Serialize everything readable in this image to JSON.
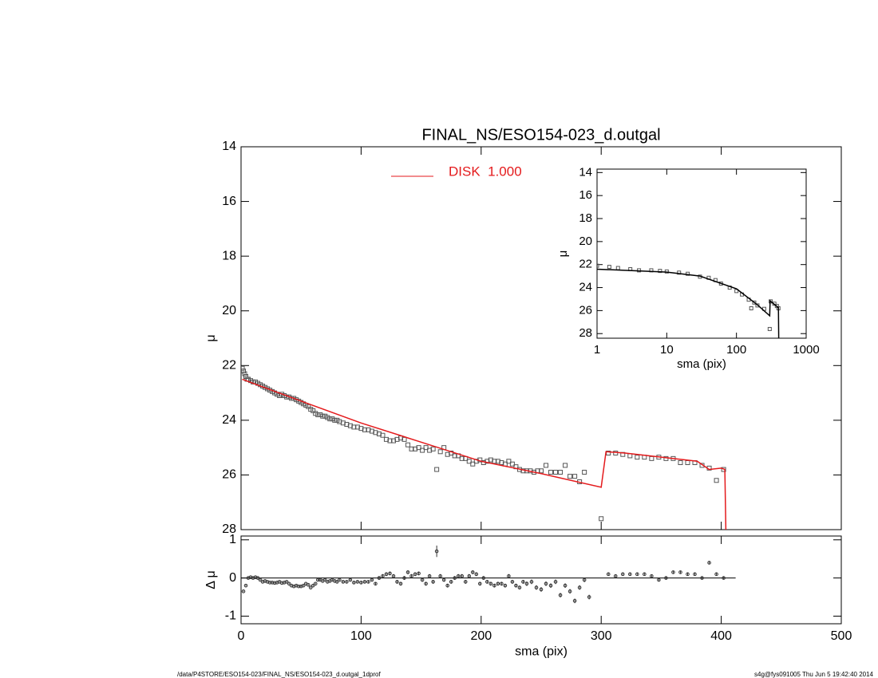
{
  "chart_data": [
    {
      "type": "scatter",
      "title": "FINAL_NS/ESO154-023_d.outgal",
      "ylabel": "μ",
      "xlim": [
        0,
        500
      ],
      "ylim": [
        28,
        14
      ],
      "xticks": [
        0,
        100,
        200,
        300,
        400,
        500
      ],
      "yticks": [
        14,
        16,
        18,
        20,
        22,
        24,
        26,
        28
      ],
      "color": "#555555",
      "x": [
        1,
        2,
        3,
        4,
        5,
        6,
        8,
        10,
        12,
        14,
        16,
        18,
        20,
        22,
        24,
        26,
        28,
        30,
        32,
        34,
        36,
        38,
        40,
        42,
        44,
        46,
        48,
        50,
        52,
        54,
        56,
        58,
        60,
        62,
        64,
        66,
        68,
        70,
        72,
        74,
        76,
        78,
        80,
        82,
        85,
        88,
        91,
        94,
        97,
        100,
        103,
        106,
        109,
        112,
        115,
        118,
        121,
        124,
        127,
        130,
        133,
        136,
        139,
        142,
        145,
        148,
        151,
        154,
        157,
        160,
        163,
        166,
        169,
        172,
        175,
        178,
        181,
        184,
        187,
        190,
        193,
        196,
        199,
        202,
        205,
        208,
        211,
        214,
        217,
        220,
        223,
        226,
        229,
        232,
        235,
        238,
        241,
        244,
        247,
        250,
        254,
        258,
        262,
        266,
        270,
        274,
        278,
        282,
        286,
        300,
        306,
        312,
        318,
        324,
        330,
        336,
        342,
        348,
        354,
        360,
        366,
        372,
        378,
        384,
        390,
        396,
        402
      ],
      "values": [
        22.1,
        22.2,
        22.3,
        22.4,
        22.5,
        22.5,
        22.55,
        22.6,
        22.6,
        22.65,
        22.7,
        22.75,
        22.8,
        22.85,
        22.9,
        22.95,
        23.0,
        23.05,
        23.1,
        23.05,
        23.1,
        23.15,
        23.15,
        23.2,
        23.2,
        23.25,
        23.3,
        23.35,
        23.4,
        23.45,
        23.5,
        23.6,
        23.65,
        23.75,
        23.8,
        23.8,
        23.85,
        23.85,
        23.9,
        23.95,
        23.95,
        24.0,
        24.0,
        24.05,
        24.1,
        24.15,
        24.2,
        24.25,
        24.25,
        24.3,
        24.35,
        24.35,
        24.4,
        24.45,
        24.5,
        24.55,
        24.7,
        24.75,
        24.75,
        24.7,
        24.65,
        24.7,
        24.9,
        25.05,
        25.05,
        25.0,
        25.1,
        25.0,
        25.1,
        25.05,
        25.8,
        25.15,
        25.0,
        25.25,
        25.2,
        25.3,
        25.3,
        25.4,
        25.4,
        25.5,
        25.6,
        25.5,
        25.45,
        25.55,
        25.5,
        25.45,
        25.5,
        25.5,
        25.55,
        25.6,
        25.5,
        25.6,
        25.7,
        25.8,
        25.85,
        25.85,
        25.85,
        25.9,
        25.85,
        25.85,
        25.65,
        25.9,
        25.9,
        25.9,
        25.65,
        26.05,
        26.05,
        26.25,
        25.9,
        27.6,
        25.2,
        25.2,
        25.25,
        25.3,
        25.35,
        25.35,
        25.4,
        25.35,
        25.4,
        25.4,
        25.55,
        25.55,
        25.55,
        25.65,
        25.75,
        26.2,
        25.8
      ],
      "series": [
        {
          "name": "DISK  1.000",
          "color": "#e41a1c",
          "x": [
            1,
            10,
            50,
            100,
            150,
            200,
            250,
            300,
            304,
            320,
            350,
            380,
            390,
            400,
            403,
            404
          ],
          "values": [
            22.5,
            22.65,
            23.3,
            24.1,
            24.8,
            25.5,
            25.95,
            26.45,
            25.15,
            25.2,
            25.35,
            25.5,
            25.8,
            25.75,
            25.8,
            28.4
          ]
        }
      ]
    },
    {
      "type": "scatter",
      "log_x": true,
      "xlabel": "sma (pix)",
      "ylabel": "μ",
      "xlim": [
        1,
        1000
      ],
      "ylim": [
        28.4,
        13.7
      ],
      "xticks": [
        1,
        10,
        100,
        1000
      ],
      "yticks": [
        14,
        16,
        18,
        20,
        22,
        24,
        26,
        28
      ],
      "color": "#555555",
      "x": [
        1,
        1.5,
        2,
        3,
        4,
        6,
        8,
        10,
        15,
        20,
        30,
        40,
        50,
        60,
        80,
        100,
        120,
        150,
        163,
        180,
        200,
        250,
        300,
        310,
        350,
        380,
        400
      ],
      "values": [
        22.1,
        22.2,
        22.3,
        22.4,
        22.5,
        22.5,
        22.55,
        22.6,
        22.7,
        22.8,
        23.05,
        23.15,
        23.35,
        23.65,
        24.0,
        24.3,
        24.6,
        25.05,
        25.8,
        25.3,
        25.55,
        25.85,
        27.6,
        25.2,
        25.4,
        25.6,
        25.8
      ],
      "series": [
        {
          "color": "#000000",
          "x": [
            1,
            10,
            30,
            100,
            200,
            300,
            304,
            400,
            404
          ],
          "values": [
            22.4,
            22.65,
            23.0,
            24.1,
            25.5,
            26.45,
            25.15,
            25.75,
            28.4
          ]
        }
      ]
    },
    {
      "type": "errorbar",
      "xlabel": "sma (pix)",
      "ylabel": "Δ μ",
      "xlim": [
        0,
        500
      ],
      "ylim": [
        -1.2,
        1.1
      ],
      "xticks": [
        0,
        100,
        200,
        300,
        400,
        500
      ],
      "yticks": [
        -1,
        0,
        1
      ],
      "color": "#333333",
      "hline": 0,
      "hline_x": [
        0,
        412
      ],
      "x": [
        2,
        4,
        6,
        8,
        10,
        12,
        14,
        16,
        18,
        20,
        22,
        24,
        26,
        28,
        30,
        32,
        34,
        36,
        38,
        40,
        42,
        44,
        46,
        48,
        50,
        52,
        54,
        56,
        58,
        60,
        62,
        64,
        66,
        68,
        70,
        72,
        74,
        76,
        78,
        80,
        82,
        85,
        88,
        91,
        94,
        97,
        100,
        103,
        106,
        109,
        112,
        115,
        118,
        121,
        124,
        127,
        130,
        133,
        136,
        139,
        142,
        145,
        148,
        151,
        154,
        157,
        160,
        163,
        166,
        169,
        172,
        175,
        178,
        181,
        184,
        187,
        190,
        193,
        196,
        199,
        202,
        205,
        208,
        211,
        214,
        217,
        220,
        223,
        226,
        229,
        232,
        235,
        238,
        242,
        246,
        250,
        254,
        258,
        262,
        266,
        270,
        274,
        278,
        282,
        286,
        290,
        306,
        312,
        318,
        324,
        330,
        336,
        342,
        348,
        354,
        360,
        366,
        372,
        378,
        384,
        390,
        396,
        402
      ],
      "values": [
        -0.35,
        -0.2,
        0.0,
        0.02,
        0.0,
        0.02,
        0.0,
        -0.05,
        -0.1,
        -0.08,
        -0.1,
        -0.12,
        -0.12,
        -0.13,
        -0.12,
        -0.1,
        -0.13,
        -0.12,
        -0.1,
        -0.15,
        -0.2,
        -0.22,
        -0.2,
        -0.22,
        -0.22,
        -0.2,
        -0.15,
        -0.18,
        -0.25,
        -0.2,
        -0.15,
        -0.05,
        -0.05,
        -0.08,
        -0.05,
        -0.1,
        -0.08,
        -0.05,
        -0.08,
        -0.1,
        -0.05,
        -0.1,
        -0.1,
        -0.05,
        -0.12,
        -0.1,
        -0.12,
        -0.1,
        -0.1,
        -0.05,
        -0.15,
        0.0,
        0.05,
        0.1,
        0.12,
        0.05,
        -0.1,
        -0.15,
        0.0,
        0.15,
        0.05,
        0.1,
        0.12,
        -0.05,
        -0.15,
        0.05,
        -0.1,
        0.7,
        0.05,
        -0.05,
        -0.2,
        -0.1,
        0.0,
        0.05,
        0.05,
        -0.1,
        0.05,
        0.15,
        0.1,
        -0.15,
        0.0,
        -0.1,
        -0.15,
        -0.2,
        -0.15,
        -0.15,
        -0.2,
        0.05,
        -0.1,
        -0.2,
        -0.25,
        -0.1,
        -0.15,
        -0.1,
        -0.25,
        -0.3,
        -0.15,
        -0.2,
        -0.1,
        -0.45,
        -0.2,
        -0.35,
        -0.6,
        -0.25,
        -0.05,
        -0.5,
        0.1,
        0.05,
        0.1,
        0.1,
        0.1,
        0.1,
        0.05,
        -0.05,
        0.0,
        0.15,
        0.15,
        0.1,
        0.1,
        0.0,
        0.4,
        0.1,
        0.0
      ],
      "errors": [
        0.02,
        0.02,
        0.02,
        0.02,
        0.02,
        0.02,
        0.02,
        0.02,
        0.02,
        0.02,
        0.02,
        0.02,
        0.02,
        0.02,
        0.02,
        0.02,
        0.02,
        0.02,
        0.02,
        0.02,
        0.02,
        0.02,
        0.02,
        0.02,
        0.02,
        0.02,
        0.02,
        0.02,
        0.02,
        0.02,
        0.02,
        0.02,
        0.02,
        0.02,
        0.02,
        0.02,
        0.02,
        0.02,
        0.02,
        0.02,
        0.02,
        0.03,
        0.03,
        0.03,
        0.03,
        0.03,
        0.03,
        0.03,
        0.03,
        0.03,
        0.03,
        0.05,
        0.05,
        0.05,
        0.05,
        0.05,
        0.05,
        0.05,
        0.05,
        0.05,
        0.05,
        0.05,
        0.05,
        0.05,
        0.05,
        0.05,
        0.05,
        0.15,
        0.05,
        0.05,
        0.05,
        0.05,
        0.05,
        0.05,
        0.05,
        0.05,
        0.05,
        0.05,
        0.05,
        0.05,
        0.05,
        0.05,
        0.05,
        0.05,
        0.05,
        0.05,
        0.05,
        0.05,
        0.05,
        0.05,
        0.05,
        0.05,
        0.06,
        0.06,
        0.06,
        0.06,
        0.06,
        0.06,
        0.06,
        0.06,
        0.06,
        0.06,
        0.06,
        0.06,
        0.06,
        0.06,
        0.03,
        0.03,
        0.03,
        0.03,
        0.03,
        0.03,
        0.03,
        0.03,
        0.03,
        0.03,
        0.03,
        0.03,
        0.03,
        0.03,
        0.03,
        0.03,
        0.03
      ]
    }
  ],
  "footer": {
    "left": "/data/P4STORE/ESO154-023/FINAL_NS/ESO154-023_d.outgal_1dprof",
    "right": "s4g@fys091005  Thu Jun  5 19:42:40 2014"
  }
}
